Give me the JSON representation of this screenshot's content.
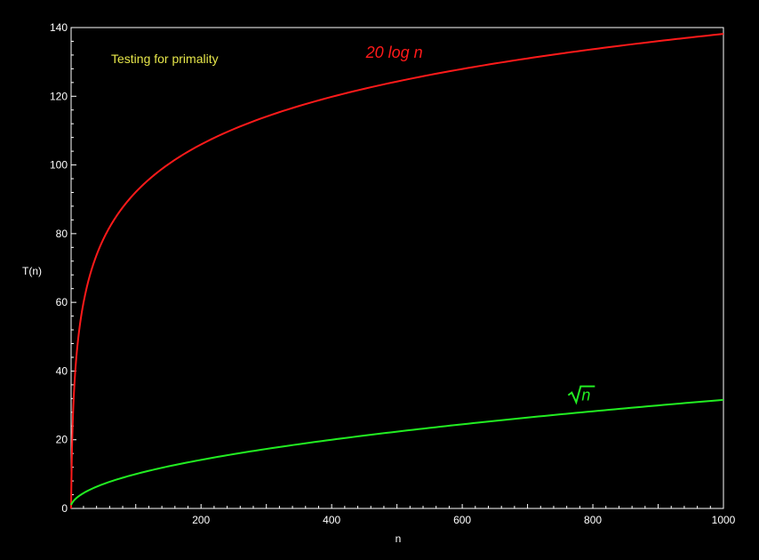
{
  "chart_data": {
    "type": "line",
    "title": "Testing for primality",
    "xlabel": "n",
    "ylabel": "T(n)",
    "xlim": [
      1,
      1000
    ],
    "ylim": [
      0,
      140
    ],
    "x_ticks": [
      200,
      400,
      600,
      800,
      1000
    ],
    "y_ticks": [
      0,
      20,
      40,
      60,
      80,
      100,
      120,
      140
    ],
    "grid": false,
    "legend": "none",
    "series": [
      {
        "name": "20 log n",
        "color": "#ff1a1a",
        "x": [
          1,
          2,
          5,
          10,
          20,
          50,
          100,
          150,
          200,
          300,
          400,
          500,
          600,
          700,
          800,
          900,
          1000
        ],
        "y": [
          0,
          13.86,
          32.19,
          46.05,
          59.91,
          78.24,
          92.1,
          100.21,
          105.97,
          114.08,
          119.83,
          124.29,
          127.94,
          131.02,
          133.69,
          136.05,
          138.16
        ]
      },
      {
        "name": "√n",
        "color": "#22ee22",
        "x": [
          1,
          2,
          5,
          10,
          20,
          50,
          100,
          150,
          200,
          300,
          400,
          500,
          600,
          700,
          800,
          900,
          1000
        ],
        "y": [
          1,
          1.41,
          2.24,
          3.16,
          4.47,
          7.07,
          10,
          12.25,
          14.14,
          17.32,
          20,
          22.36,
          24.49,
          26.46,
          28.28,
          30,
          31.62
        ]
      }
    ],
    "annotations": [
      {
        "text": "20 log n",
        "x": 500,
        "y": 132,
        "color": "#ff1a1a"
      },
      {
        "text": "n",
        "x": 780,
        "y": 34,
        "color": "#22ee22"
      }
    ],
    "title_color": "#e6e64a"
  }
}
